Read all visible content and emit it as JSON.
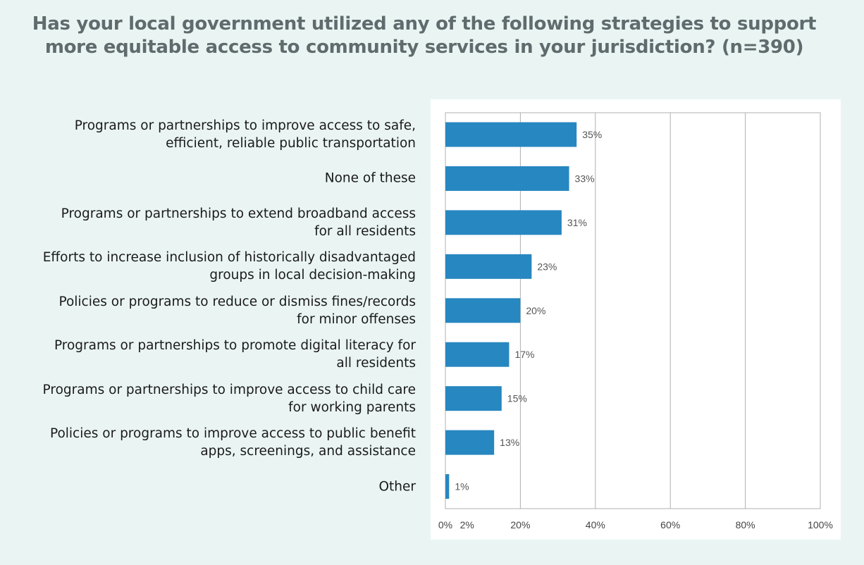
{
  "title_lines": [
    "Has your local government utilized any of the following strategies to support",
    "more equitable access to community services in your jurisdiction? (n=390)"
  ],
  "colors": {
    "bar": "#2787c0",
    "background": "#eaf5f3",
    "panel": "#ffffff",
    "grid": "#b0b0b0"
  },
  "chart_data": {
    "type": "bar",
    "orientation": "horizontal",
    "title": "Has your local government utilized any of the following strategies to support more equitable access to community services in your jurisdiction? (n=390)",
    "categories": [
      [
        "Programs or partnerships to improve access to safe,",
        "efficient, reliable public transportation"
      ],
      [
        "None of these"
      ],
      [
        "Programs or partnerships to extend broadband access",
        "for all residents"
      ],
      [
        "Efforts to increase inclusion of historically disadvantaged",
        "groups in local decision-making"
      ],
      [
        "Policies or programs to reduce or dismiss fines/records",
        "for minor offenses"
      ],
      [
        "Programs or partnerships to promote digital literacy for",
        "all residents"
      ],
      [
        "Programs or partnerships to improve access to child care",
        "for working parents"
      ],
      [
        "Policies or programs to improve access to public benefit",
        "apps, screenings, and assistance"
      ],
      [
        "Other"
      ]
    ],
    "values": [
      35,
      33,
      31,
      23,
      20,
      17,
      15,
      13,
      1
    ],
    "value_labels": [
      "35%",
      "33%",
      "31%",
      "23%",
      "20%",
      "17%",
      "15%",
      "13%",
      "1%"
    ],
    "xlim": [
      0,
      100
    ],
    "ticks": [
      {
        "value": 0,
        "label": "0%"
      },
      {
        "value": 2,
        "label": "2%"
      },
      {
        "value": 20,
        "label": "20%"
      },
      {
        "value": 40,
        "label": "40%"
      },
      {
        "value": 60,
        "label": "60%"
      },
      {
        "value": 80,
        "label": "80%"
      },
      {
        "value": 100,
        "label": "100%"
      }
    ],
    "gridlines": [
      20,
      40,
      60,
      80
    ],
    "grid": true,
    "legend": "none"
  }
}
